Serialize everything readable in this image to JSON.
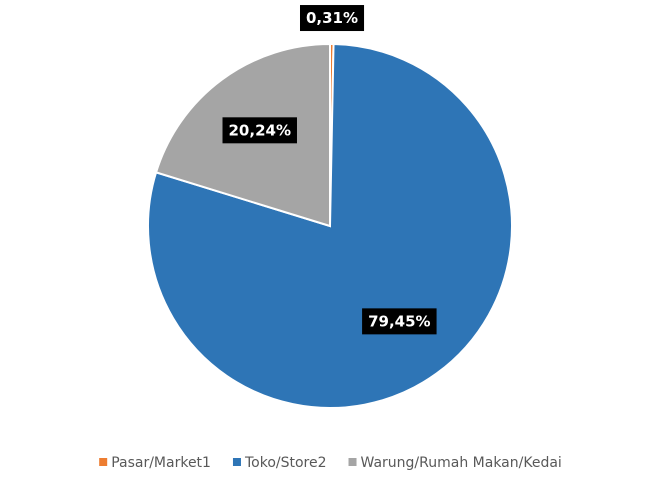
{
  "chart_data": {
    "type": "pie",
    "categories": [
      "Pasar/Market1",
      "Toko/Store2",
      "Warung/Rumah Makan/Kedai"
    ],
    "values": [
      0.31,
      79.45,
      20.24
    ],
    "value_labels": [
      "0,31%",
      "79,45%",
      "20,24%"
    ],
    "colors": [
      "#ed7d31",
      "#2e75b6",
      "#a5a5a5"
    ],
    "legend": "bottom"
  }
}
